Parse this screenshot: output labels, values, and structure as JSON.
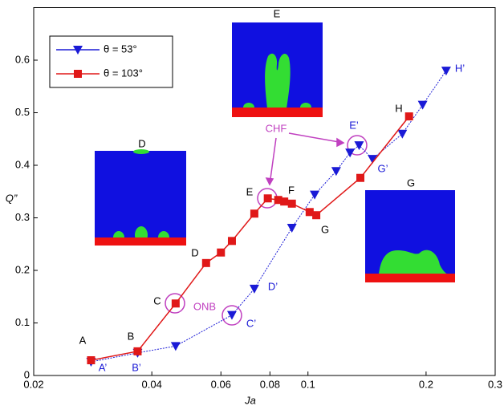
{
  "chart_data": {
    "type": "line",
    "x_label": "Ja",
    "y_label": "Q”",
    "x_scale": "log",
    "xlim": [
      0.02,
      0.3
    ],
    "xticks": [
      0.02,
      0.04,
      0.06,
      0.08,
      0.1,
      0.2,
      0.3
    ],
    "ylim": [
      0,
      0.7
    ],
    "yticks": [
      0,
      0.1,
      0.2,
      0.3,
      0.4,
      0.5,
      0.6
    ],
    "legend": "top-left",
    "series": [
      {
        "name": "θ = 53°",
        "color": "#1a1ad6",
        "marker": "triangle-down",
        "x": [
          0.028,
          0.0368,
          0.046,
          0.064,
          0.073,
          0.091,
          0.104,
          0.118,
          0.128,
          0.135,
          0.146,
          0.174,
          0.196,
          0.225
        ],
        "values": [
          0.026,
          0.043,
          0.056,
          0.115,
          0.165,
          0.281,
          0.344,
          0.389,
          0.424,
          0.438,
          0.412,
          0.46,
          0.515,
          0.58
        ]
      },
      {
        "name": "θ = 103°",
        "color": "#e01818",
        "marker": "square",
        "x": [
          0.028,
          0.0368,
          0.046,
          0.055,
          0.06,
          0.064,
          0.073,
          0.079,
          0.084,
          0.087,
          0.091,
          0.101,
          0.105,
          0.136,
          0.181
        ],
        "values": [
          0.029,
          0.046,
          0.137,
          0.214,
          0.234,
          0.256,
          0.308,
          0.337,
          0.334,
          0.331,
          0.327,
          0.311,
          0.305,
          0.376,
          0.493
        ]
      }
    ],
    "annotations": [
      "A",
      "A’",
      "B",
      "B’",
      "C",
      "D",
      "E",
      "F",
      "G",
      "H",
      "C’",
      "D’",
      "E’",
      "G’",
      "H’",
      "ONB",
      "CHF",
      "D",
      "E",
      "G"
    ]
  }
}
